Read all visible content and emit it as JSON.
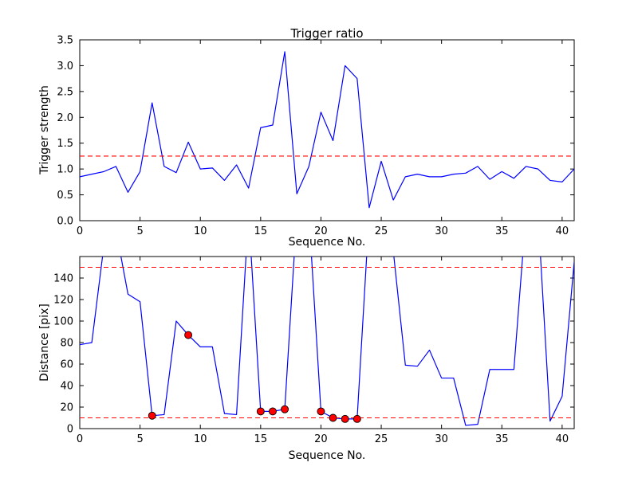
{
  "figure": {
    "background": "#ffffff",
    "axes_edge_color": "#000000",
    "line_color": "#0000ff",
    "threshold_color": "#ff0000",
    "marker_color": "#ff0000"
  },
  "chart_data": [
    {
      "type": "line",
      "title": "Trigger ratio",
      "xlabel": "Sequence No.",
      "ylabel": "Trigger strength",
      "xlim": [
        0,
        41
      ],
      "ylim": [
        0,
        3.5
      ],
      "grid": false,
      "legend": null,
      "xticks": [
        0,
        5,
        10,
        15,
        20,
        25,
        30,
        35,
        40
      ],
      "xtick_labels": [
        "0",
        "5",
        "10",
        "15",
        "20",
        "25",
        "30",
        "35",
        "40"
      ],
      "yticks": [
        0.0,
        0.5,
        1.0,
        1.5,
        2.0,
        2.5,
        3.0,
        3.5
      ],
      "ytick_labels": [
        "0.0",
        "0.5",
        "1.0",
        "1.5",
        "2.0",
        "2.5",
        "3.0",
        "3.5"
      ],
      "x": [
        0,
        1,
        2,
        3,
        4,
        5,
        6,
        7,
        8,
        9,
        10,
        11,
        12,
        13,
        14,
        15,
        16,
        17,
        18,
        19,
        20,
        21,
        22,
        23,
        24,
        25,
        26,
        27,
        28,
        29,
        30,
        31,
        32,
        33,
        34,
        35,
        36,
        37,
        38,
        39,
        40,
        41
      ],
      "series": [
        {
          "name": "trigger-strength",
          "color": "#0000ff",
          "values": [
            0.85,
            0.9,
            0.95,
            1.05,
            0.55,
            0.95,
            2.28,
            1.05,
            0.93,
            1.52,
            1.0,
            1.02,
            0.78,
            1.08,
            0.63,
            1.8,
            1.85,
            3.27,
            0.52,
            1.05,
            2.1,
            1.55,
            3.0,
            2.75,
            0.25,
            1.15,
            0.4,
            0.85,
            0.9,
            0.85,
            0.85,
            0.9,
            0.92,
            1.05,
            0.8,
            0.95,
            0.82,
            1.05,
            1.0,
            0.78,
            0.75,
            1.0
          ]
        }
      ],
      "thresholds": [
        {
          "y": 1.25,
          "color": "#ff0000",
          "style": "dashed"
        }
      ],
      "markers": null
    },
    {
      "type": "line",
      "title": "",
      "xlabel": "Sequence No.",
      "ylabel": "Distance [pix]",
      "xlim": [
        0,
        41
      ],
      "ylim": [
        0,
        160
      ],
      "grid": false,
      "legend": null,
      "xticks": [
        0,
        5,
        10,
        15,
        20,
        25,
        30,
        35,
        40
      ],
      "xtick_labels": [
        "0",
        "5",
        "10",
        "15",
        "20",
        "25",
        "30",
        "35",
        "40"
      ],
      "yticks": [
        0,
        20,
        40,
        60,
        80,
        100,
        120,
        140
      ],
      "ytick_labels": [
        "0",
        "20",
        "40",
        "60",
        "80",
        "100",
        "120",
        "140"
      ],
      "x": [
        0,
        1,
        2,
        3,
        4,
        5,
        6,
        7,
        8,
        9,
        10,
        11,
        12,
        13,
        14,
        15,
        16,
        17,
        18,
        19,
        20,
        21,
        22,
        23,
        24,
        25,
        26,
        27,
        28,
        29,
        30,
        31,
        32,
        33,
        34,
        35,
        36,
        37,
        38,
        39,
        40,
        41
      ],
      "series": [
        {
          "name": "distance",
          "color": "#0000ff",
          "values": [
            78,
            80,
            170,
            185,
            125,
            118,
            12,
            13,
            100,
            87,
            76,
            76,
            14,
            13,
            200,
            16,
            16,
            18,
            200,
            200,
            16,
            10,
            9,
            9,
            200,
            195,
            165,
            59,
            58,
            73,
            47,
            47,
            3,
            4,
            55,
            55,
            55,
            200,
            200,
            7,
            30,
            155
          ]
        }
      ],
      "thresholds": [
        {
          "y": 150,
          "color": "#ff0000",
          "style": "dashed"
        },
        {
          "y": 10,
          "color": "#ff0000",
          "style": "dashed"
        }
      ],
      "markers": {
        "color": "#ff0000",
        "edge_color": "#000000",
        "x": [
          6,
          9,
          15,
          16,
          17,
          20,
          21,
          22,
          23
        ],
        "y": [
          12,
          87,
          16,
          16,
          18,
          16,
          10,
          9,
          9
        ]
      }
    }
  ]
}
